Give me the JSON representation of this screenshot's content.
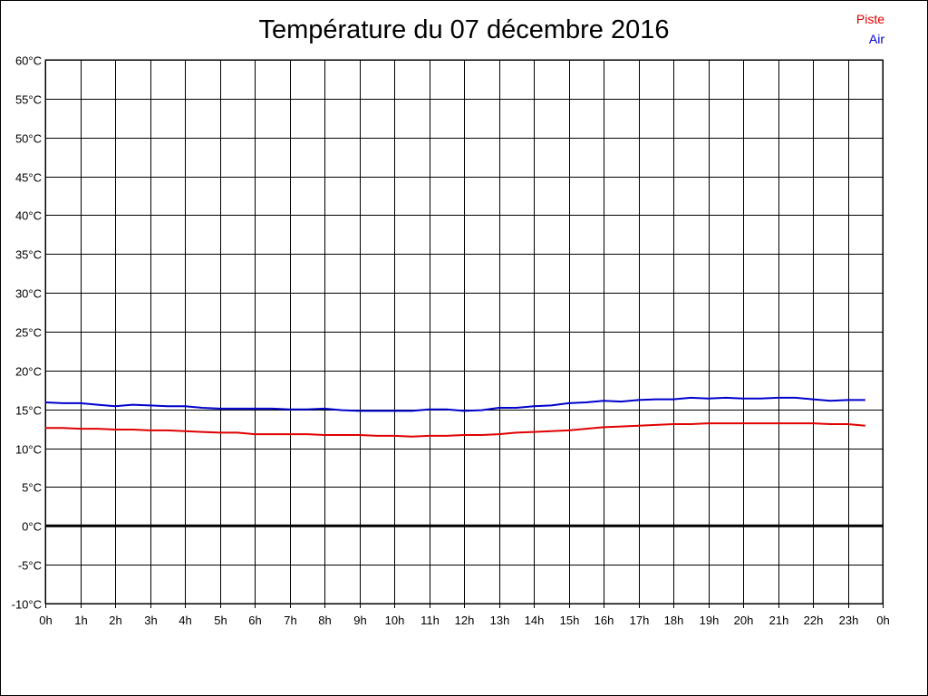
{
  "chart_data": {
    "type": "line",
    "title": "Température du 07 décembre 2016",
    "xlabel": "",
    "ylabel": "",
    "y_ticks": [
      "60°C",
      "55°C",
      "50°C",
      "45°C",
      "40°C",
      "35°C",
      "30°C",
      "25°C",
      "20°C",
      "15°C",
      "10°C",
      "5°C",
      "0°C",
      "-5°C",
      "-10°C"
    ],
    "x_ticks": [
      "0h",
      "1h",
      "2h",
      "3h",
      "4h",
      "5h",
      "6h",
      "7h",
      "8h",
      "9h",
      "10h",
      "11h",
      "12h",
      "13h",
      "14h",
      "15h",
      "16h",
      "17h",
      "18h",
      "19h",
      "20h",
      "21h",
      "22h",
      "23h",
      "0h"
    ],
    "xlim": [
      0,
      24
    ],
    "ylim": [
      -10,
      60
    ],
    "grid": true,
    "legend_placement": "top-right",
    "series": [
      {
        "name": "Piste",
        "color": "#e00000",
        "x": [
          0,
          0.5,
          1,
          1.5,
          2,
          2.5,
          3,
          3.5,
          4,
          4.5,
          5,
          5.5,
          6,
          6.5,
          7,
          7.5,
          8,
          8.5,
          9,
          9.5,
          10,
          10.5,
          11,
          11.5,
          12,
          12.5,
          13,
          13.5,
          14,
          14.5,
          15,
          15.5,
          16,
          16.5,
          17,
          17.5,
          18,
          18.5,
          19,
          19.5,
          20,
          20.5,
          21,
          21.5,
          22,
          22.5,
          23,
          23.5
        ],
        "values": [
          12.6,
          12.6,
          12.5,
          12.5,
          12.4,
          12.4,
          12.3,
          12.3,
          12.2,
          12.1,
          12.0,
          12.0,
          11.8,
          11.8,
          11.8,
          11.8,
          11.7,
          11.7,
          11.7,
          11.6,
          11.6,
          11.5,
          11.6,
          11.6,
          11.7,
          11.7,
          11.8,
          12.0,
          12.1,
          12.2,
          12.3,
          12.5,
          12.7,
          12.8,
          12.9,
          13.0,
          13.1,
          13.1,
          13.2,
          13.2,
          13.2,
          13.2,
          13.2,
          13.2,
          13.2,
          13.1,
          13.1,
          12.9
        ]
      },
      {
        "name": "Air",
        "color": "#0000cc",
        "x": [
          0,
          0.5,
          1,
          1.5,
          2,
          2.5,
          3,
          3.5,
          4,
          4.5,
          5,
          5.5,
          6,
          6.5,
          7,
          7.5,
          8,
          8.5,
          9,
          9.5,
          10,
          10.5,
          11,
          11.5,
          12,
          12.5,
          13,
          13.5,
          14,
          14.5,
          15,
          15.5,
          16,
          16.5,
          17,
          17.5,
          18,
          18.5,
          19,
          19.5,
          20,
          20.5,
          21,
          21.5,
          22,
          22.5,
          23,
          23.5
        ],
        "values": [
          15.9,
          15.8,
          15.8,
          15.6,
          15.4,
          15.6,
          15.5,
          15.4,
          15.4,
          15.2,
          15.1,
          15.1,
          15.1,
          15.1,
          15.0,
          15.0,
          15.1,
          14.9,
          14.8,
          14.8,
          14.8,
          14.8,
          15.0,
          15.0,
          14.8,
          14.9,
          15.2,
          15.2,
          15.4,
          15.5,
          15.8,
          15.9,
          16.1,
          16.0,
          16.2,
          16.3,
          16.3,
          16.5,
          16.4,
          16.5,
          16.4,
          16.4,
          16.5,
          16.5,
          16.3,
          16.1,
          16.2,
          16.2
        ]
      }
    ],
    "emphasized_line": {
      "y": 0,
      "color": "#000000"
    }
  }
}
